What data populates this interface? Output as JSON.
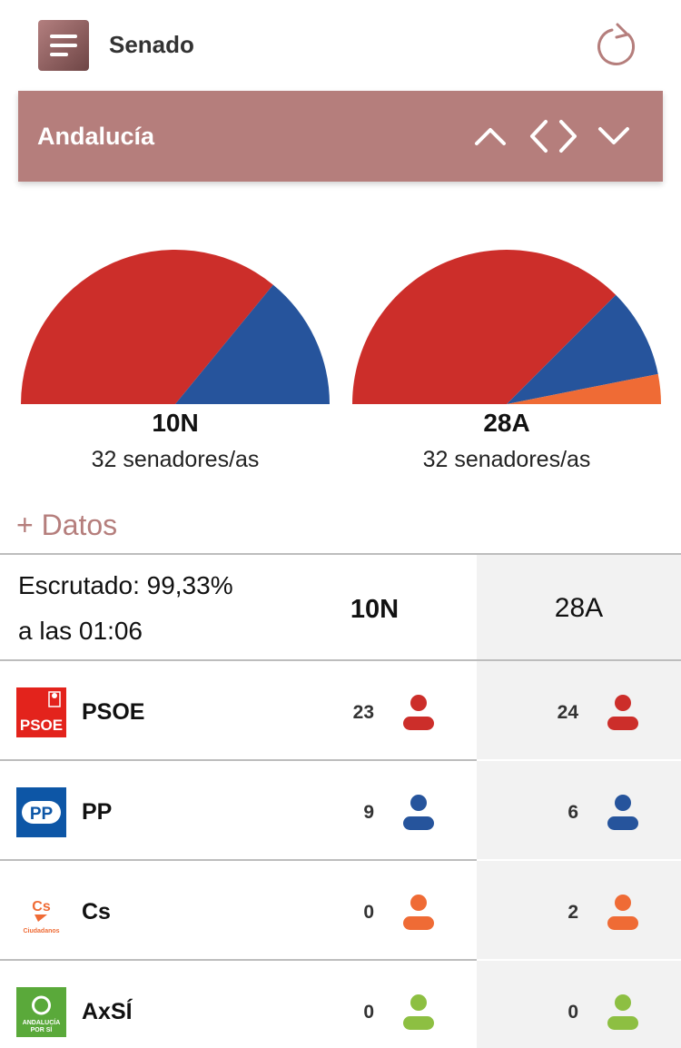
{
  "header": {
    "title": "Senado",
    "menu_icon": "hamburger-menu-icon",
    "refresh_icon": "refresh-icon"
  },
  "region": {
    "name": "Andalucía",
    "accent": "#b57e7c"
  },
  "charts": [
    {
      "label": "10N",
      "subtitle": "32 senadores/as",
      "chart_data": {
        "type": "pie",
        "categories": [
          "PSOE",
          "PP"
        ],
        "values": [
          23,
          9
        ],
        "colors": [
          "#cc2e2a",
          "#26549c"
        ],
        "shape": "semicircle"
      }
    },
    {
      "label": "28A",
      "subtitle": "32 senadores/as",
      "chart_data": {
        "type": "pie",
        "categories": [
          "PSOE",
          "PP",
          "Cs"
        ],
        "values": [
          24,
          6,
          2
        ],
        "colors": [
          "#cc2e2a",
          "#26549c",
          "#ef6b35"
        ],
        "shape": "semicircle"
      }
    }
  ],
  "datos_link": "+ Datos",
  "table": {
    "scrutiny_line1": "Escrutado: 99,33%",
    "scrutiny_line2": "a las 01:06",
    "col_10n": "10N",
    "col_28a": "28A",
    "rows": [
      {
        "party": "PSOE",
        "logo_text": "PSOE",
        "v10": "23",
        "v28": "24",
        "color": "#cc2e2a"
      },
      {
        "party": "PP",
        "logo_text": "PP",
        "v10": "9",
        "v28": "6",
        "color": "#26549c"
      },
      {
        "party": "Cs",
        "logo_text": "Cs",
        "logo_sub": "Ciudadanos",
        "v10": "0",
        "v28": "2",
        "color": "#ef6b35"
      },
      {
        "party": "AxSÍ",
        "logo_text": "ANDALUCÍA",
        "logo_sub": "POR SÍ",
        "v10": "0",
        "v28": "0",
        "color": "#8dbf42"
      }
    ]
  }
}
